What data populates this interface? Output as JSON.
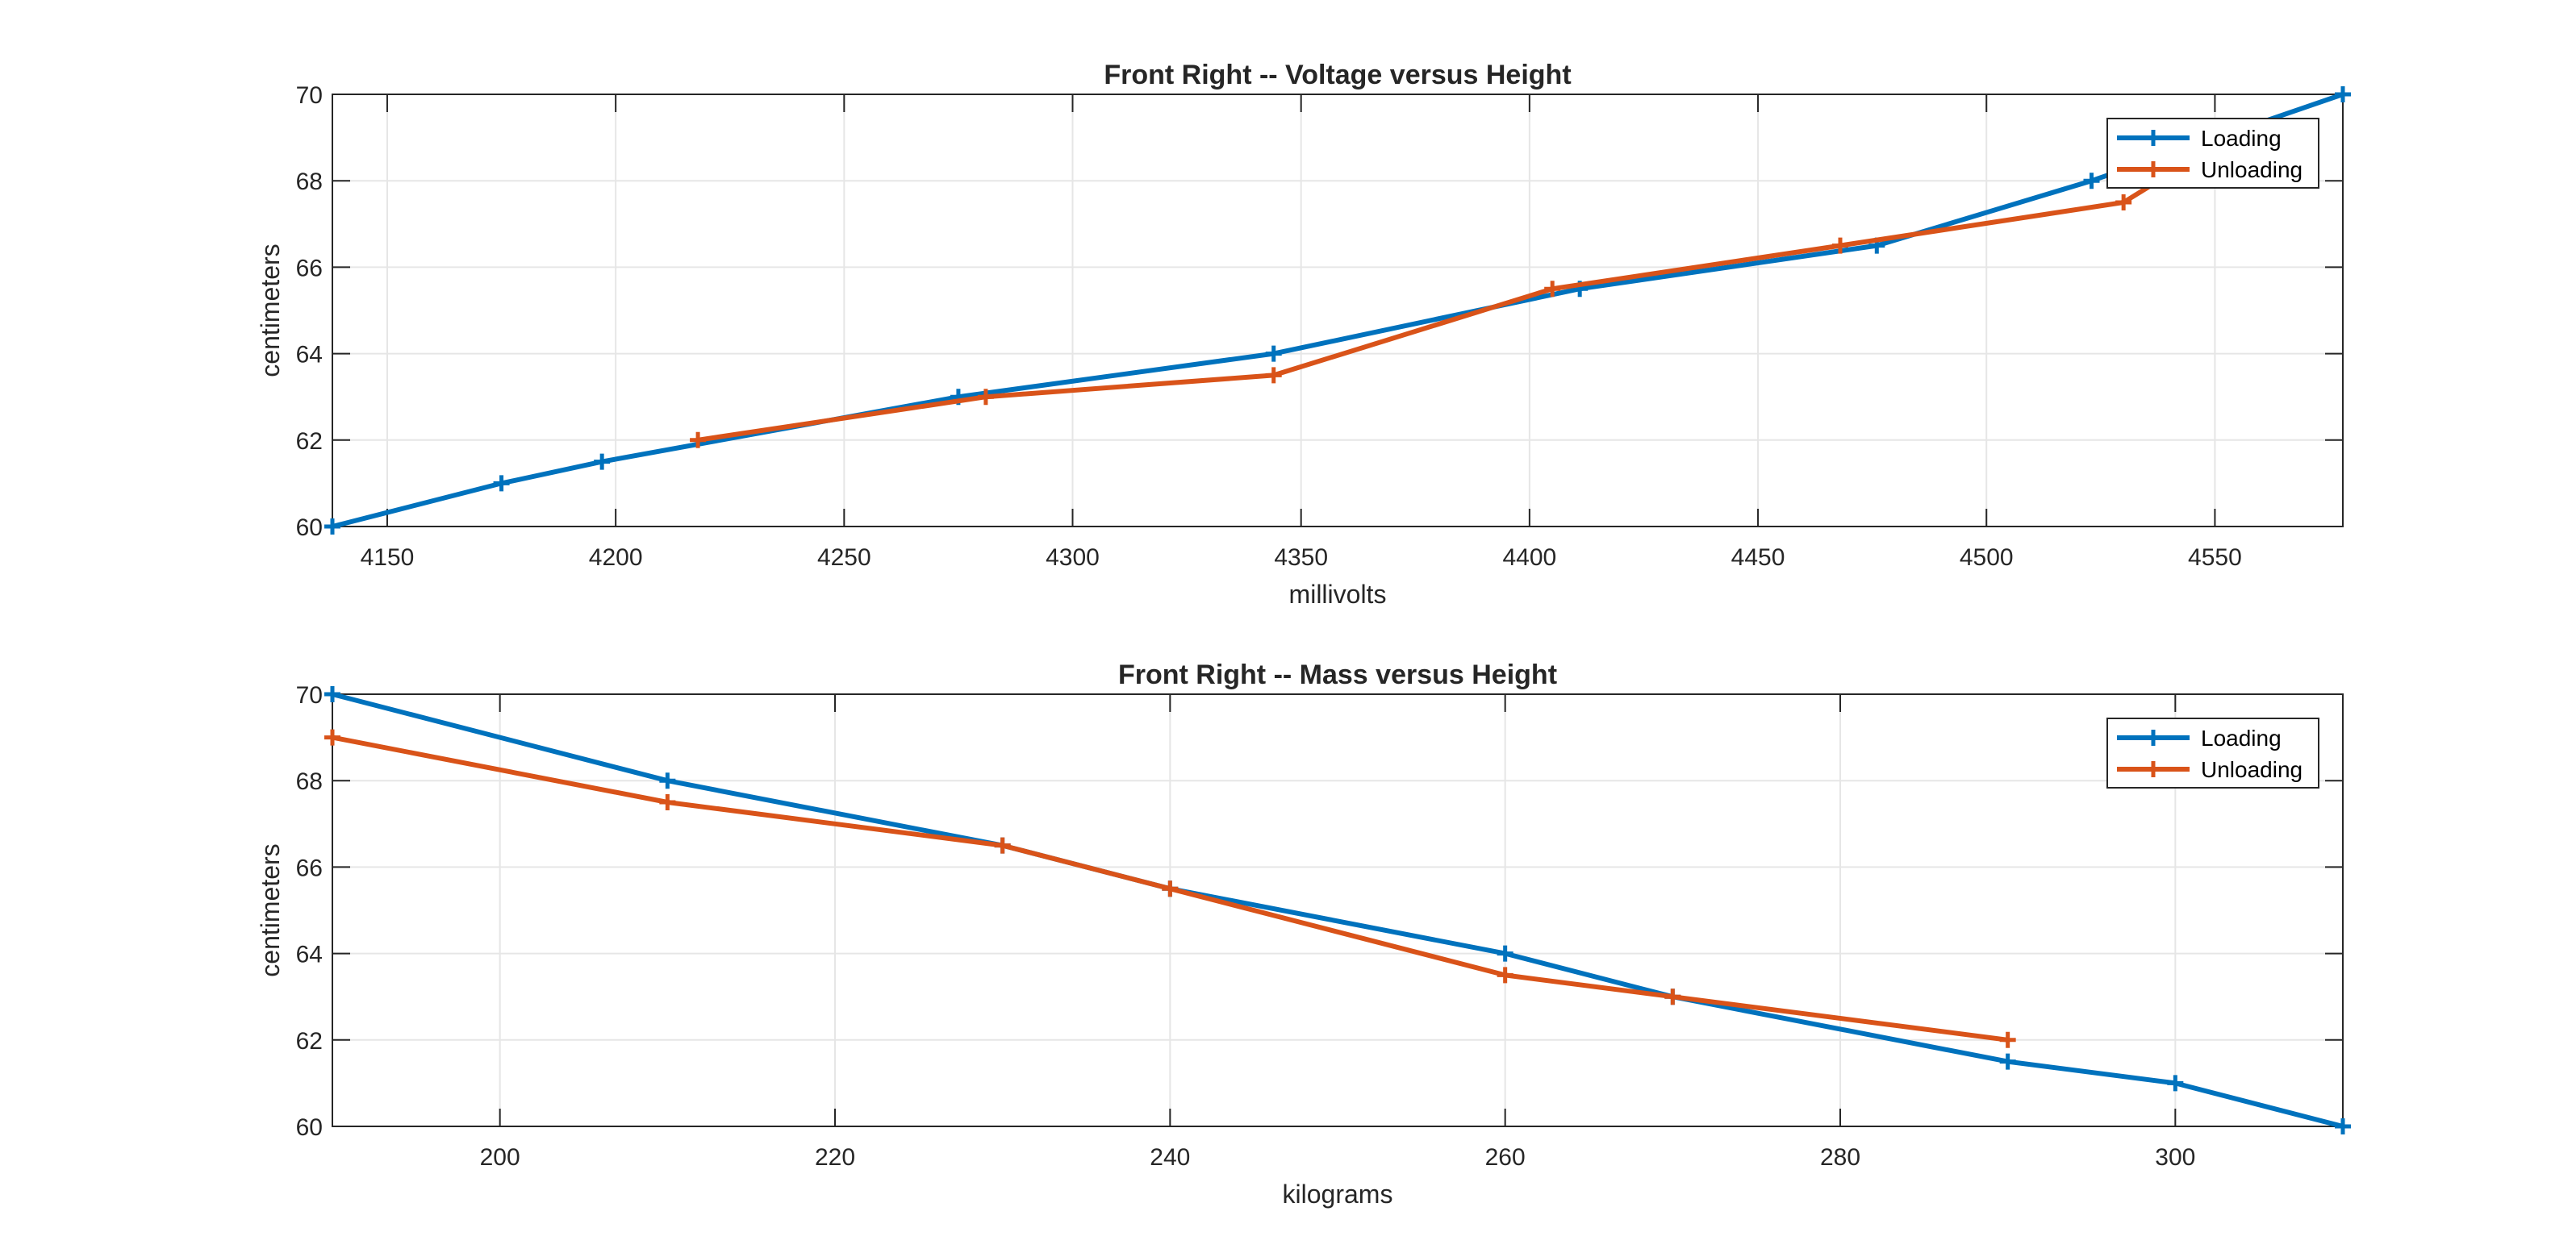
{
  "chart_data": [
    {
      "type": "line",
      "title": "Front Right -- Voltage versus Height",
      "xlabel": "millivolts",
      "ylabel": "centimeters",
      "xlim": [
        4138,
        4578
      ],
      "ylim": [
        60,
        70
      ],
      "xticks": [
        4150,
        4200,
        4250,
        4300,
        4350,
        4400,
        4450,
        4500,
        4550
      ],
      "yticks": [
        60,
        62,
        64,
        66,
        68,
        70
      ],
      "grid": true,
      "legend_position": "top-right",
      "series": [
        {
          "name": "Loading",
          "color": "#0072bd",
          "marker": "plus",
          "x": [
            4138,
            4175,
            4197,
            4275,
            4344,
            4411,
            4476,
            4523,
            4578
          ],
          "y": [
            60,
            61,
            61.5,
            63,
            64,
            65.5,
            66.5,
            68,
            70
          ]
        },
        {
          "name": "Unloading",
          "color": "#d95319",
          "marker": "plus",
          "x": [
            4218,
            4281,
            4344,
            4405,
            4468,
            4530,
            4553
          ],
          "y": [
            62,
            63,
            63.5,
            65.5,
            66.5,
            67.5,
            69
          ]
        }
      ]
    },
    {
      "type": "line",
      "title": "Front Right -- Mass versus Height",
      "xlabel": "kilograms",
      "ylabel": "centimeters",
      "xlim": [
        190,
        310
      ],
      "ylim": [
        60,
        70
      ],
      "xticks": [
        200,
        220,
        240,
        260,
        280,
        300
      ],
      "yticks": [
        60,
        62,
        64,
        66,
        68,
        70
      ],
      "grid": true,
      "legend_position": "top-right",
      "series": [
        {
          "name": "Loading",
          "color": "#0072bd",
          "marker": "plus",
          "x": [
            190,
            210,
            230,
            240,
            260,
            270,
            290,
            300,
            310
          ],
          "y": [
            70,
            68,
            66.5,
            65.5,
            64,
            63,
            61.5,
            61,
            60
          ]
        },
        {
          "name": "Unloading",
          "color": "#d95319",
          "marker": "plus",
          "x": [
            190,
            210,
            230,
            240,
            260,
            270,
            290
          ],
          "y": [
            69,
            67.5,
            66.5,
            65.5,
            63.5,
            63,
            62
          ]
        }
      ]
    }
  ]
}
